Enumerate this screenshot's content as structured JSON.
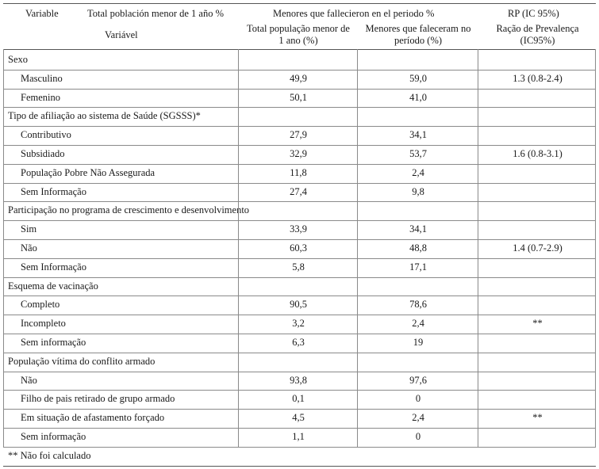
{
  "header": {
    "variable_es": "Variable",
    "total_es": "Total población menor de 1 año %",
    "fallecieron_es": "Menores que fallecieron en el periodo %",
    "rp_es": "RP (IC 95%)",
    "variable_pt": "Variável",
    "total_pt_1": "Total população menor de",
    "total_pt_2": "1 ano (%)",
    "fallecieron_pt_1": "Menores que faleceram no",
    "fallecieron_pt_2": "período (%)",
    "rp_pt_1": "Ração de Prevalença",
    "rp_pt_2": "(IC95%)"
  },
  "sections": [
    {
      "title": "Sexo",
      "rows": [
        {
          "label": "Masculino",
          "total": "49,9",
          "deaths": "59,0",
          "rp": "1.3 (0.8-2.4)"
        },
        {
          "label": "Femenino",
          "total": "50,1",
          "deaths": "41,0",
          "rp": ""
        }
      ]
    },
    {
      "title": "Tipo de afiliação ao sistema de Saúde (SGSSS)*",
      "rows": [
        {
          "label": "Contributivo",
          "total": "27,9",
          "deaths": "34,1",
          "rp": ""
        },
        {
          "label": "Subsidiado",
          "total": "32,9",
          "deaths": "53,7",
          "rp": "1.6 (0.8-3.1)"
        },
        {
          "label": "População Pobre Não Assegurada",
          "total": "11,8",
          "deaths": "2,4",
          "rp": ""
        },
        {
          "label": "Sem Informação",
          "total": "27,4",
          "deaths": "9,8",
          "rp": ""
        }
      ]
    },
    {
      "title": "Participação no programa de crescimento e desenvolvimento",
      "rows": [
        {
          "label": "Sim",
          "total": "33,9",
          "deaths": "34,1",
          "rp": ""
        },
        {
          "label": "Não",
          "total": "60,3",
          "deaths": "48,8",
          "rp": "1.4 (0.7-2.9)"
        },
        {
          "label": "Sem Informação",
          "total": "5,8",
          "deaths": "17,1",
          "rp": ""
        }
      ]
    },
    {
      "title": "Esquema de vacinação",
      "rows": [
        {
          "label": "Completo",
          "total": "90,5",
          "deaths": "78,6",
          "rp": ""
        },
        {
          "label": "Incompleto",
          "total": "3,2",
          "deaths": "2,4",
          "rp": "**"
        },
        {
          "label": "Sem informação",
          "total": "6,3",
          "deaths": "19",
          "rp": ""
        }
      ]
    },
    {
      "title": "População vítima do conflito armado",
      "rows": [
        {
          "label": "Não",
          "total": "93,8",
          "deaths": "97,6",
          "rp": ""
        },
        {
          "label": "Filho de pais retirado de grupo armado",
          "total": "0,1",
          "deaths": "0",
          "rp": ""
        },
        {
          "label": "Em situação de afastamento forçado",
          "total": "4,5",
          "deaths": "2,4",
          "rp": "**"
        },
        {
          "label": "Sem informação",
          "total": "1,1",
          "deaths": "0",
          "rp": ""
        }
      ]
    }
  ],
  "footnote": "** Não foi calculado"
}
